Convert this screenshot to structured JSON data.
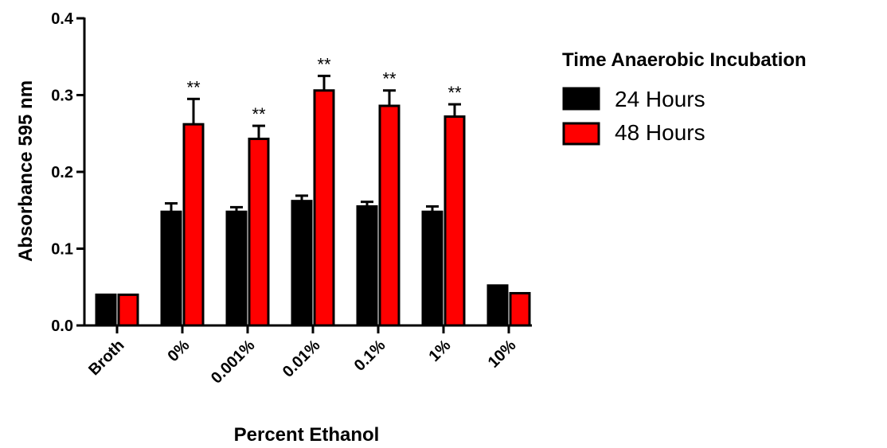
{
  "chart_data": {
    "type": "bar",
    "xlabel": "Percent Ethanol",
    "ylabel": "Absorbance 595 nm",
    "ylim": [
      0,
      0.4
    ],
    "yticks": [
      "0.0",
      "0.1",
      "0.2",
      "0.3",
      "0.4"
    ],
    "categories": [
      "Broth",
      "0%",
      "0.001%",
      "0.01%",
      "0.1%",
      "1%",
      "10%"
    ],
    "legend": {
      "title": "Time Anaerobic Incubation",
      "position": "right"
    },
    "series": [
      {
        "name": "24 Hours",
        "color": "#000000",
        "values": [
          0.04,
          0.148,
          0.148,
          0.162,
          0.155,
          0.148,
          0.052
        ],
        "errors": [
          0,
          0.011,
          0.006,
          0.007,
          0.006,
          0.007,
          0
        ]
      },
      {
        "name": "48 Hours",
        "color": "#ff0000",
        "values": [
          0.04,
          0.262,
          0.243,
          0.306,
          0.286,
          0.272,
          0.042
        ],
        "errors": [
          0,
          0.033,
          0.017,
          0.019,
          0.02,
          0.016,
          0
        ]
      }
    ],
    "annotations": [
      "",
      "**",
      "**",
      "**",
      "**",
      "**",
      ""
    ]
  }
}
